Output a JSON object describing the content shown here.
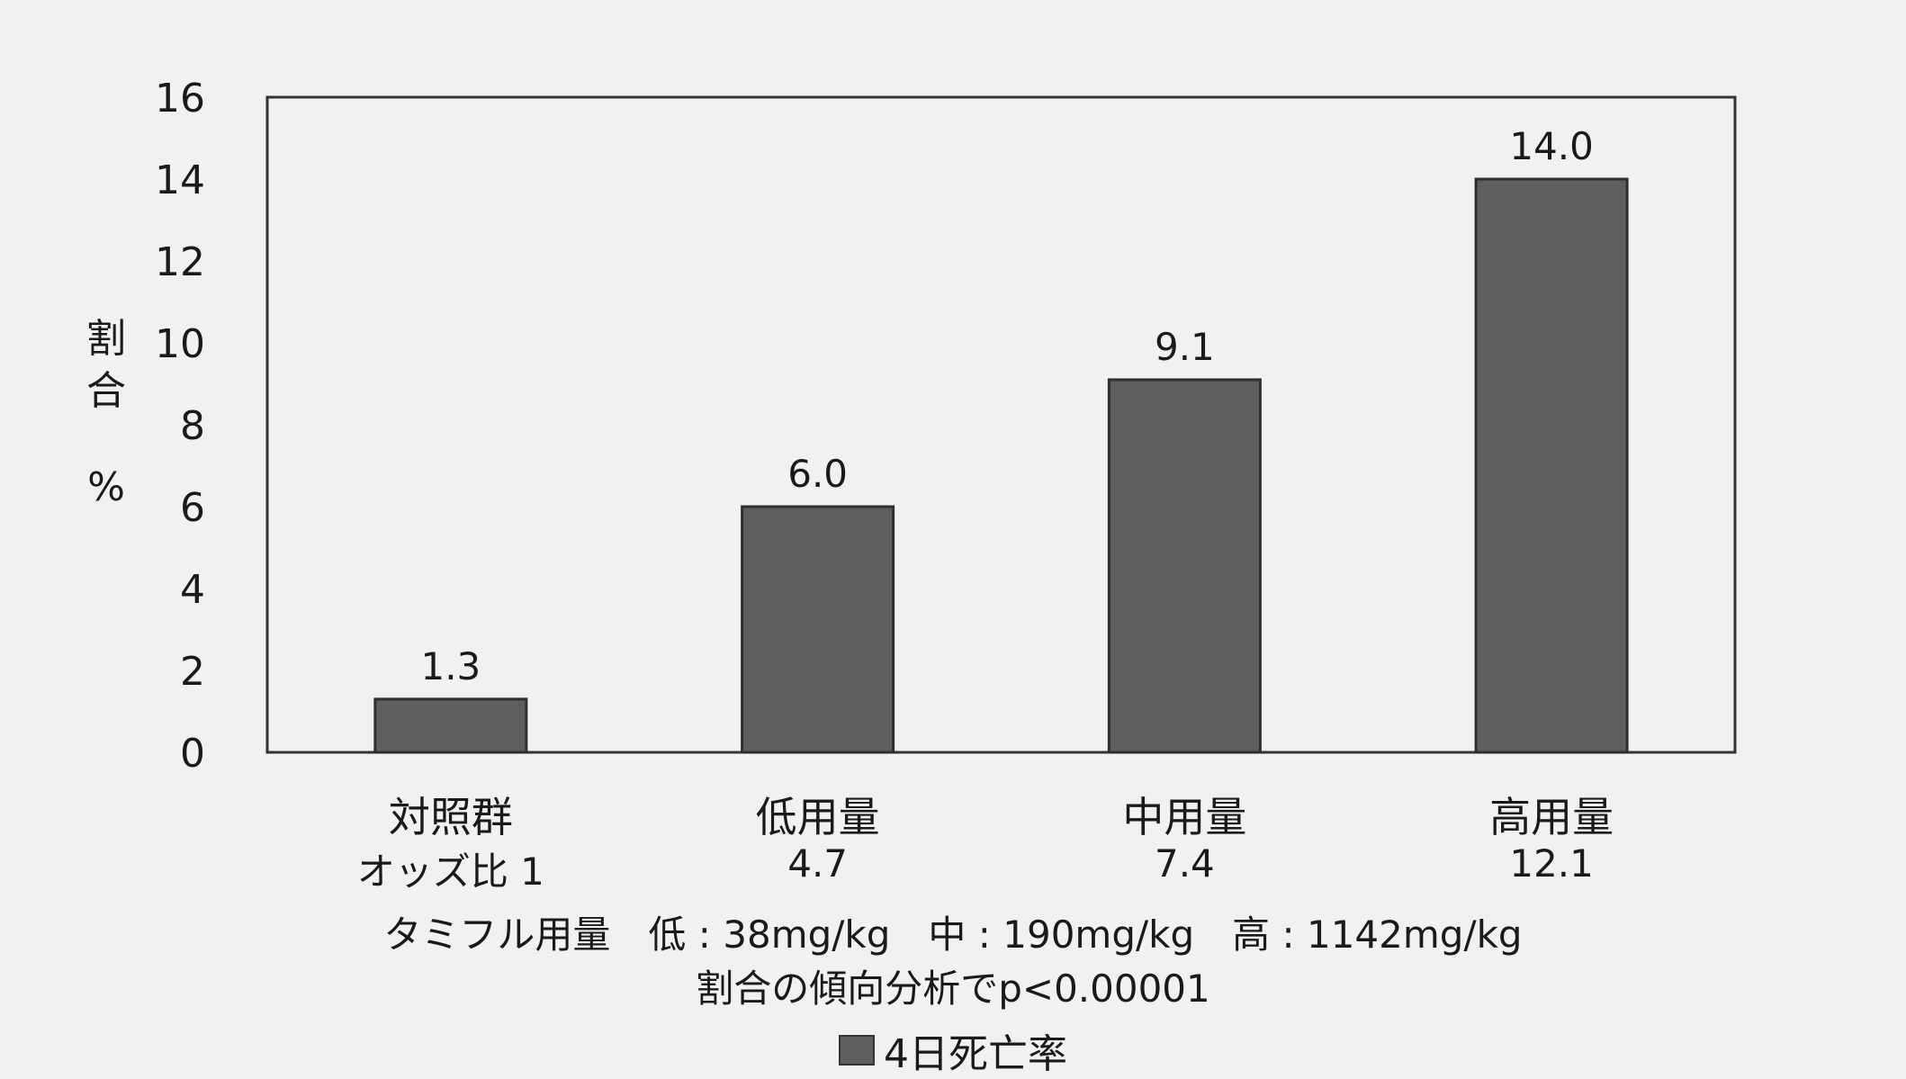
{
  "chart_data": {
    "type": "bar",
    "categories": [
      "対照群",
      "低用量",
      "中用量",
      "高用量"
    ],
    "odds_ratios": [
      "オッズ比 1",
      "4.7",
      "7.4",
      "12.1"
    ],
    "series": [
      {
        "name": "4日死亡率",
        "values": [
          1.3,
          6.0,
          9.1,
          14.0
        ]
      }
    ],
    "data_labels": [
      "1.3",
      "6.0",
      "9.1",
      "14.0"
    ],
    "ylabel_chars": [
      "割",
      "合",
      "%"
    ],
    "ylim": [
      0,
      16
    ],
    "yticks": [
      0,
      2,
      4,
      6,
      8,
      10,
      12,
      14,
      16
    ],
    "note_dose": "タミフル用量　低 : 38mg/kg　中 : 190mg/kg　高 : 1142mg/kg",
    "note_trend": "割合の傾向分析でp<0.00001",
    "legend": "4日死亡率",
    "bar_color": "#5e5e5e",
    "grid": false,
    "legend_position": "bottom"
  }
}
